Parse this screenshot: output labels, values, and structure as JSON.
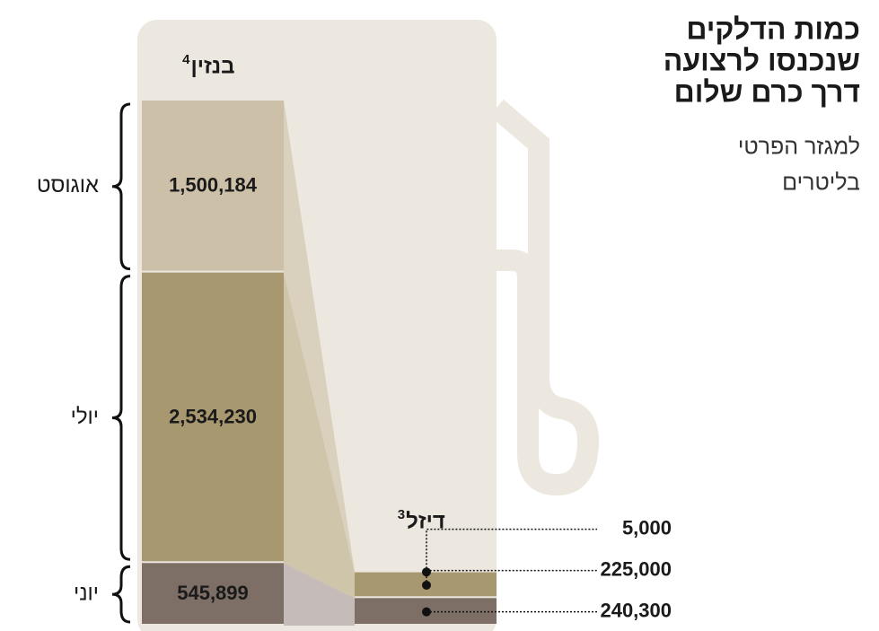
{
  "chart_data": {
    "type": "stacked_bar",
    "title": [
      "כמות הדלקים",
      "שנכנסו לרצועה",
      "דרך כרם שלום"
    ],
    "subtitle": [
      "למגזר הפרטי",
      "בליטרים"
    ],
    "categories": [
      "יוני",
      "יולי",
      "אוגוסט"
    ],
    "colors": [
      "#7d6e66",
      "#a89870",
      "#cdc0a8"
    ],
    "series": [
      {
        "name": "בנזין",
        "footnote": "4",
        "values": [
          545899,
          2534230,
          1500184
        ],
        "value_labels": [
          "545,899",
          "2,534,230",
          "1,500,184"
        ]
      },
      {
        "name": "דיזל",
        "footnote": "3",
        "values": [
          240300,
          225000,
          5000
        ],
        "value_labels": [
          "240,300",
          "225,000",
          "5,000"
        ]
      }
    ]
  }
}
